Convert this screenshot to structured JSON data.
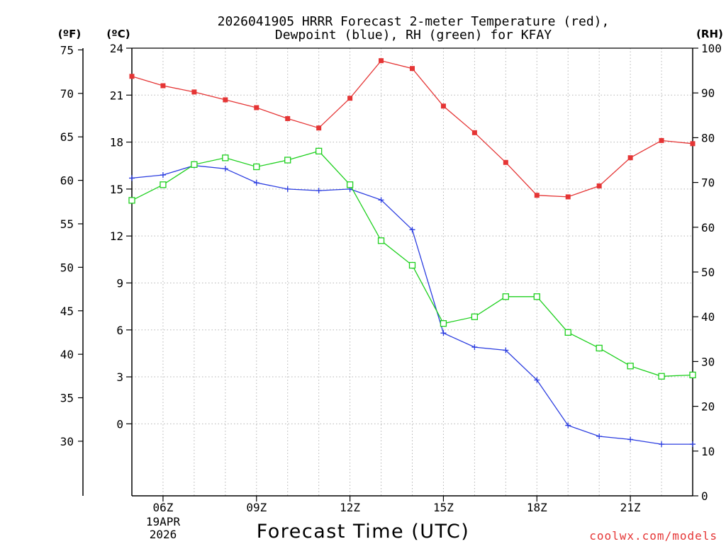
{
  "title": {
    "line1": "2026041905 HRRR Forecast 2-meter Temperature (red),",
    "line2": "Dewpoint (blue), RH (green) for KFAY"
  },
  "axis_units": {
    "fahrenheit": "(ºF)",
    "celsius": "(ºC)",
    "rh": "(RH)"
  },
  "xlabel": "Forecast Time (UTC)",
  "date_label": {
    "day": "19APR",
    "year": "2026"
  },
  "credit": "coolwx.com/models",
  "colors": {
    "temperature": "#e53535",
    "dewpoint": "#2b3de0",
    "rh": "#1ed01e",
    "grid": "#b4b4b4"
  },
  "chart_data": {
    "type": "line",
    "x": [
      5,
      6,
      7,
      8,
      9,
      10,
      11,
      12,
      13,
      14,
      15,
      16,
      17,
      18,
      19,
      20,
      21,
      22,
      23
    ],
    "xlim": [
      5,
      23
    ],
    "x_ticks": [
      {
        "value": 6,
        "label": "06Z"
      },
      {
        "value": 9,
        "label": "09Z"
      },
      {
        "value": 12,
        "label": "12Z"
      },
      {
        "value": 15,
        "label": "15Z"
      },
      {
        "value": 18,
        "label": "18Z"
      },
      {
        "value": 21,
        "label": "21Z"
      }
    ],
    "y_celsius": {
      "range": [
        -4.6,
        24
      ],
      "ticks": [
        0,
        3,
        6,
        9,
        12,
        15,
        18,
        21,
        24
      ]
    },
    "y_fahrenheit": {
      "ticks": [
        30,
        35,
        40,
        45,
        50,
        55,
        60,
        65,
        70,
        75
      ]
    },
    "y_rh": {
      "range": [
        0,
        100
      ],
      "ticks": [
        0,
        10,
        20,
        30,
        40,
        50,
        60,
        70,
        80,
        90,
        100
      ]
    },
    "series": [
      {
        "name": "Temperature",
        "units": "C",
        "axis": "celsius",
        "marker": "filled-square",
        "color": "#e53535",
        "values": [
          22.2,
          21.6,
          21.2,
          20.7,
          20.2,
          19.5,
          18.9,
          20.8,
          23.2,
          22.7,
          20.3,
          18.6,
          16.7,
          14.6,
          14.5,
          15.2,
          17.0,
          18.1,
          17.9
        ]
      },
      {
        "name": "Dewpoint",
        "units": "C",
        "axis": "celsius",
        "marker": "plus",
        "color": "#2b3de0",
        "values": [
          15.7,
          15.9,
          16.5,
          16.3,
          15.4,
          15.0,
          14.9,
          15.0,
          14.3,
          12.4,
          5.8,
          4.9,
          4.7,
          2.8,
          -0.1,
          -0.8,
          -1.0,
          -1.3,
          -1.3
        ]
      },
      {
        "name": "RH",
        "units": "%",
        "axis": "rh",
        "marker": "open-square",
        "color": "#1ed01e",
        "values": [
          66,
          69.5,
          74,
          75.5,
          73.5,
          75,
          77,
          69.5,
          57,
          51.5,
          38.5,
          40,
          44.5,
          44.5,
          36.5,
          33,
          29,
          26.7,
          27
        ]
      }
    ]
  }
}
